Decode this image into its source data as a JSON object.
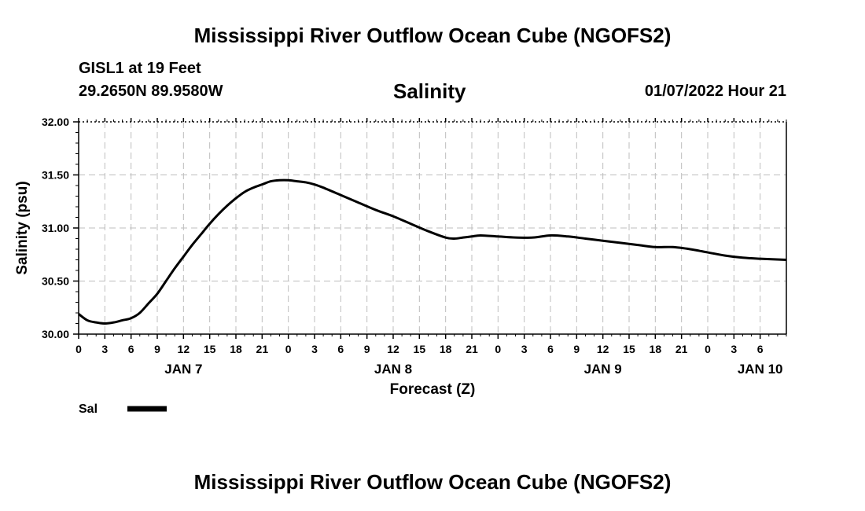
{
  "header": {
    "title": "Mississippi River Outflow Ocean Cube (NGOFS2)",
    "station_name": "GISL1 at 19 Feet",
    "station_coords": "29.2650N  89.9580W",
    "chart_title": "Salinity",
    "datetime": "01/07/2022 Hour 21"
  },
  "legend": {
    "label": "Sal",
    "color": "#000000"
  },
  "footer": {
    "title": "Mississippi River Outflow Ocean Cube (NGOFS2)"
  },
  "chart_data": {
    "type": "line",
    "title": "Salinity",
    "xlabel": "Forecast (Z)",
    "ylabel": "Salinity (psu)",
    "ylim": [
      30.0,
      32.0
    ],
    "xlim": [
      0,
      81
    ],
    "yticks": [
      "30.00",
      "30.50",
      "31.00",
      "31.50",
      "32.00"
    ],
    "xtick_labels": [
      "0",
      "3",
      "6",
      "9",
      "12",
      "15",
      "18",
      "21",
      "0",
      "3",
      "6",
      "9",
      "12",
      "15",
      "18",
      "21",
      "0",
      "3",
      "6",
      "9",
      "12",
      "15",
      "18",
      "21",
      "0",
      "3",
      "6"
    ],
    "day_labels": [
      {
        "label": "JAN 7",
        "hour": 12
      },
      {
        "label": "JAN 8",
        "hour": 36
      },
      {
        "label": "JAN 9",
        "hour": 60
      },
      {
        "label": "JAN 10",
        "hour": 78
      }
    ],
    "grid": true,
    "series": [
      {
        "name": "Sal",
        "color": "#000000",
        "x": [
          0,
          1,
          2,
          3,
          4,
          5,
          6,
          7,
          8,
          9,
          10,
          11,
          12,
          13,
          14,
          15,
          16,
          17,
          18,
          19,
          20,
          21,
          22,
          23,
          24,
          25,
          26,
          27,
          28,
          30,
          32,
          34,
          36,
          38,
          40,
          42,
          43,
          44,
          45,
          46,
          48,
          50,
          52,
          54,
          56,
          58,
          60,
          62,
          64,
          66,
          68,
          70,
          72,
          74,
          76,
          78,
          81
        ],
        "values": [
          30.19,
          30.13,
          30.11,
          30.1,
          30.11,
          30.13,
          30.15,
          30.2,
          30.29,
          30.38,
          30.5,
          30.62,
          30.73,
          30.84,
          30.94,
          31.04,
          31.13,
          31.21,
          31.28,
          31.34,
          31.38,
          31.41,
          31.44,
          31.45,
          31.45,
          31.44,
          31.43,
          31.41,
          31.38,
          31.31,
          31.24,
          31.17,
          31.11,
          31.04,
          30.97,
          30.91,
          30.9,
          30.91,
          30.92,
          30.93,
          30.92,
          30.91,
          30.91,
          30.93,
          30.92,
          30.9,
          30.88,
          30.86,
          30.84,
          30.82,
          30.82,
          30.8,
          30.77,
          30.74,
          30.72,
          30.71,
          30.7
        ]
      }
    ]
  }
}
